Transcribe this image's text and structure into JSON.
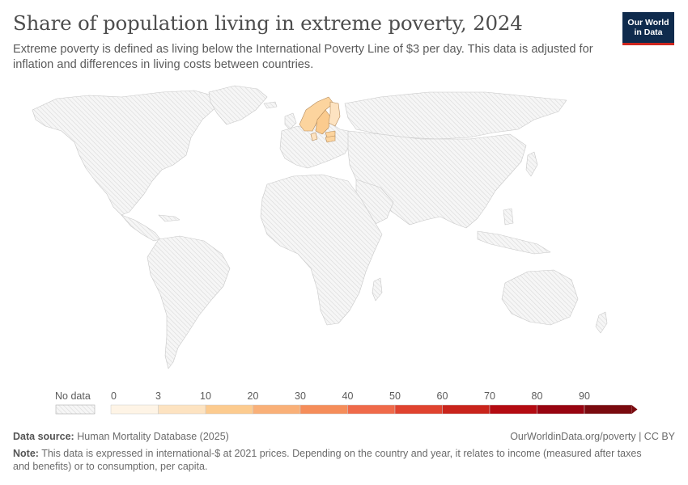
{
  "header": {
    "title": "Share of population living in extreme poverty, 2024",
    "subtitle": "Extreme poverty is defined as living below the International Poverty Line of $3 per day. This data is adjusted for inflation and differences in living costs between countries.",
    "logo_line1": "Our World",
    "logo_line2": "in Data"
  },
  "legend": {
    "no_data_label": "No data",
    "bins": [
      {
        "label": "0",
        "color": "#fef4e6"
      },
      {
        "label": "3",
        "color": "#fde3c1"
      },
      {
        "label": "10",
        "color": "#fccb8f"
      },
      {
        "label": "20",
        "color": "#f9b078"
      },
      {
        "label": "30",
        "color": "#f58d5a"
      },
      {
        "label": "40",
        "color": "#ef6a4a"
      },
      {
        "label": "50",
        "color": "#e0432f"
      },
      {
        "label": "60",
        "color": "#c9241c"
      },
      {
        "label": "70",
        "color": "#b40b12"
      },
      {
        "label": "80",
        "color": "#980411"
      },
      {
        "label": "90",
        "color": "#7a0a0f"
      }
    ]
  },
  "map": {
    "no_data_color": "#d9d9d9",
    "highlighted_regions": [
      {
        "name": "Norway",
        "color": "#fcd49e"
      },
      {
        "name": "Sweden",
        "color": "#fbcb8e"
      },
      {
        "name": "Finland",
        "color": "#fde3c1"
      },
      {
        "name": "Denmark",
        "color": "#fde3c1"
      },
      {
        "name": "Latvia",
        "color": "#fcd49e"
      },
      {
        "name": "Lithuania",
        "color": "#fcd49e"
      }
    ]
  },
  "footer": {
    "source_label": "Data source:",
    "source_text": "Human Mortality Database (2025)",
    "link_text": "OurWorldinData.org/poverty | CC BY",
    "note_label": "Note:",
    "note_text": "This data is expressed in international-$ at 2021 prices. Depending on the country and year, it relates to income (measured after taxes and benefits) or to consumption, per capita."
  }
}
